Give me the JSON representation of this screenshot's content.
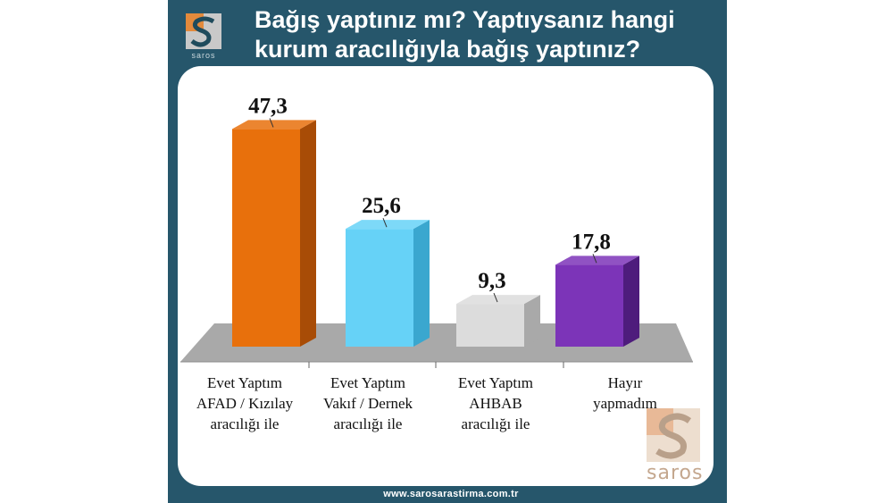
{
  "title_lines": [
    "Bağış yaptınız mı? Yaptıysanız hangi",
    "kurum aracılığıyla bağış yaptınız?"
  ],
  "brand": {
    "logo_text": "saros",
    "website": "www.sarosarastirma.com.tr"
  },
  "colors": {
    "frame": "#26566b",
    "floor": "#a9a9a9"
  },
  "chart_data": {
    "type": "bar",
    "categories": [
      [
        "Evet Yaptım",
        "AFAD / Kızılay",
        "aracılığı ile"
      ],
      [
        "Evet Yaptım",
        "Vakıf / Dernek",
        "aracılığı ile"
      ],
      [
        "Evet Yaptım",
        "AHBAB",
        "aracılığı ile"
      ],
      [
        "Hayır",
        "yapmadım"
      ]
    ],
    "values": [
      47.3,
      25.6,
      9.3,
      17.8
    ],
    "value_labels": [
      "47,3",
      "25,6",
      "9,3",
      "17,8"
    ],
    "colors": [
      "#e8700c",
      "#66d2f7",
      "#dcdcdc",
      "#7c34b8"
    ],
    "side_colors": [
      "#a84c06",
      "#3aa7cf",
      "#a9a9a9",
      "#4e1c7c"
    ],
    "style": "3d-bar",
    "grid": false,
    "legend": "none"
  }
}
